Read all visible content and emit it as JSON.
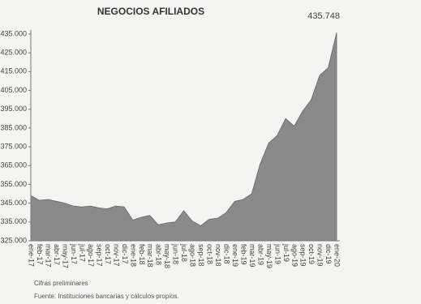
{
  "chart_data": {
    "type": "area",
    "title": "NEGOCIOS AFILIADOS",
    "categories": [
      "ene-17",
      "feb-17",
      "mar-17",
      "abr-17",
      "may-17",
      "jun-17",
      "jul-17",
      "ago-17",
      "sep-17",
      "oct-17",
      "nov-17",
      "dic-17",
      "ene-18",
      "feb-18",
      "mar-18",
      "abr-18",
      "may-18",
      "jun-18",
      "jul-18",
      "ago-18",
      "sep-18",
      "oct-18",
      "nov-18",
      "dic-18",
      "ene-19",
      "feb-19",
      "mar-19",
      "abr-19",
      "may-19",
      "jun-19",
      "jul-19",
      "ago-19",
      "sep-19",
      "oct-19",
      "nov-19",
      "dic-19",
      "ene-20"
    ],
    "values": [
      349000,
      346500,
      347000,
      346000,
      345000,
      343500,
      343000,
      343500,
      342500,
      342000,
      343500,
      343000,
      336000,
      337500,
      338500,
      333500,
      334500,
      335000,
      341000,
      335500,
      333000,
      336500,
      337000,
      340000,
      346000,
      347000,
      350000,
      366000,
      377000,
      381000,
      390000,
      386000,
      394000,
      400000,
      413000,
      417000,
      435748
    ],
    "value_labels": [
      null,
      null,
      null,
      null,
      null,
      null,
      null,
      null,
      null,
      null,
      null,
      null,
      null,
      null,
      null,
      null,
      null,
      null,
      null,
      null,
      null,
      null,
      null,
      null,
      null,
      null,
      null,
      null,
      null,
      null,
      null,
      null,
      null,
      null,
      null,
      null,
      "435.748"
    ],
    "color": "#8a8a8a",
    "ylim": [
      325000,
      435000
    ],
    "yticks": [
      {
        "value": 325000,
        "label": "325.000"
      },
      {
        "value": 335000,
        "label": "335.000"
      },
      {
        "value": 345000,
        "label": "345.000"
      },
      {
        "value": 355000,
        "label": "355.000"
      },
      {
        "value": 365000,
        "label": "365.000"
      },
      {
        "value": 375000,
        "label": "375.000"
      },
      {
        "value": 385000,
        "label": "385.000"
      },
      {
        "value": 395000,
        "label": "395.000"
      },
      {
        "value": 405000,
        "label": "405.000"
      },
      {
        "value": 415000,
        "label": "415.000"
      },
      {
        "value": 425000,
        "label": "425.000"
      },
      {
        "value": 435000,
        "label": "435.000"
      }
    ],
    "grid": false,
    "notes": [
      "Cifras preliminares",
      "Fuente: Instituciones bancarias y cálculos propios."
    ]
  }
}
